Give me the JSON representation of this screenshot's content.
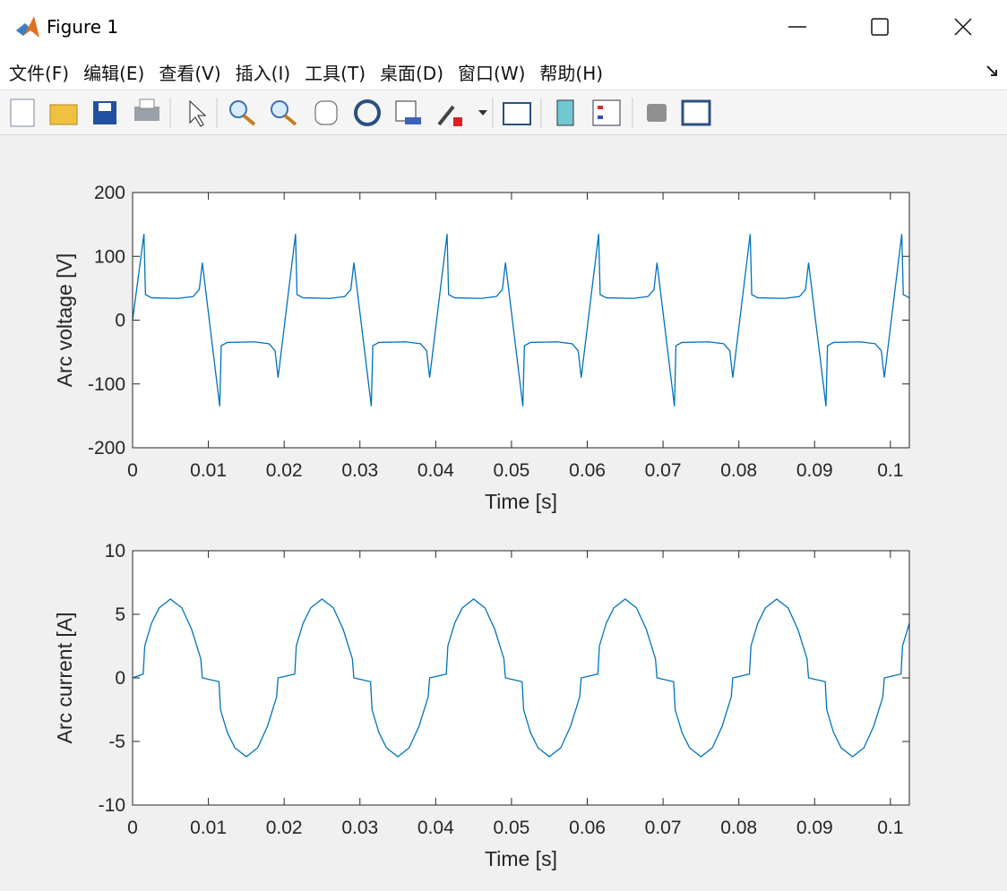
{
  "window": {
    "title": "Figure 1",
    "menu": [
      "文件(F)",
      "编辑(E)",
      "查看(V)",
      "插入(I)",
      "工具(T)",
      "桌面(D)",
      "窗口(W)",
      "帮助(H)"
    ]
  },
  "chart_data": [
    {
      "type": "line",
      "xlabel": "Time [s]",
      "ylabel": "Arc voltage [V]",
      "x": [
        0,
        0.0015,
        0.0017,
        0.0025,
        0.006,
        0.008,
        0.0088,
        0.0092,
        0.0115,
        0.0117,
        0.0125,
        0.016,
        0.018,
        0.0188,
        0.0192,
        0.0215,
        0.0217,
        0.0225,
        0.026,
        0.028,
        0.0288,
        0.0292,
        0.0315,
        0.0317,
        0.0325,
        0.036,
        0.038,
        0.0388,
        0.0392,
        0.0415,
        0.0417,
        0.0425,
        0.046,
        0.048,
        0.0488,
        0.0492,
        0.0515,
        0.0517,
        0.0525,
        0.056,
        0.058,
        0.0588,
        0.0592,
        0.0615,
        0.0617,
        0.0625,
        0.066,
        0.068,
        0.0688,
        0.0692,
        0.0715,
        0.0717,
        0.0725,
        0.076,
        0.078,
        0.0788,
        0.0792,
        0.0815,
        0.0817,
        0.0825,
        0.086,
        0.088,
        0.0888,
        0.0892,
        0.0915,
        0.0917,
        0.0925,
        0.096,
        0.098,
        0.0988,
        0.0992,
        0.1015,
        0.1017,
        0.1025
      ],
      "series": [
        {
          "color": "#0072bd",
          "values": [
            0,
            135,
            40,
            35,
            34,
            37,
            48,
            90,
            -135,
            -40,
            -35,
            -34,
            -37,
            -48,
            -90,
            135,
            40,
            35,
            34,
            37,
            48,
            90,
            -135,
            -40,
            -35,
            -34,
            -37,
            -48,
            -90,
            135,
            40,
            35,
            34,
            37,
            48,
            90,
            -135,
            -40,
            -35,
            -34,
            -37,
            -48,
            -90,
            135,
            40,
            35,
            34,
            37,
            48,
            90,
            -135,
            -40,
            -35,
            -34,
            -37,
            -48,
            -90,
            135,
            40,
            35,
            34,
            37,
            48,
            90,
            -135,
            -40,
            -35,
            -34,
            -37,
            -48,
            -90,
            135,
            40,
            35
          ]
        }
      ],
      "xlim": [
        0,
        0.1025
      ],
      "xticks": [
        0,
        0.01,
        0.02,
        0.03,
        0.04,
        0.05,
        0.06,
        0.07,
        0.08,
        0.09,
        0.1
      ],
      "ylim": [
        -200,
        200
      ],
      "yticks": [
        -200,
        -100,
        0,
        100,
        200
      ]
    },
    {
      "type": "line",
      "xlabel": "Time [s]",
      "ylabel": "Arc current [A]",
      "x": [
        0,
        0.0014,
        0.0016,
        0.0025,
        0.0035,
        0.005,
        0.0065,
        0.0078,
        0.009,
        0.0092,
        0.0114,
        0.0116,
        0.0125,
        0.0135,
        0.015,
        0.0165,
        0.0178,
        0.019,
        0.0192,
        0.0214,
        0.0216,
        0.0225,
        0.0235,
        0.025,
        0.0265,
        0.0278,
        0.029,
        0.0292,
        0.0314,
        0.0316,
        0.0325,
        0.0335,
        0.035,
        0.0365,
        0.0378,
        0.039,
        0.0392,
        0.0414,
        0.0416,
        0.0425,
        0.0435,
        0.045,
        0.0465,
        0.0478,
        0.049,
        0.0492,
        0.0514,
        0.0516,
        0.0525,
        0.0535,
        0.055,
        0.0565,
        0.0578,
        0.059,
        0.0592,
        0.0614,
        0.0616,
        0.0625,
        0.0635,
        0.065,
        0.0665,
        0.0678,
        0.069,
        0.0692,
        0.0714,
        0.0716,
        0.0725,
        0.0735,
        0.075,
        0.0765,
        0.0778,
        0.079,
        0.0792,
        0.0814,
        0.0816,
        0.0825,
        0.0835,
        0.085,
        0.0865,
        0.0878,
        0.089,
        0.0892,
        0.0914,
        0.0916,
        0.0925,
        0.0935,
        0.095,
        0.0965,
        0.0978,
        0.099,
        0.0992,
        0.1014,
        0.1016,
        0.1025
      ],
      "series": [
        {
          "color": "#0072bd",
          "values": [
            0,
            0.3,
            2.5,
            4.3,
            5.5,
            6.2,
            5.5,
            3.8,
            1.5,
            0,
            -0.3,
            -2.5,
            -4.3,
            -5.5,
            -6.2,
            -5.5,
            -3.8,
            -1.5,
            0,
            0.3,
            2.5,
            4.3,
            5.5,
            6.2,
            5.5,
            3.8,
            1.5,
            0,
            -0.3,
            -2.5,
            -4.3,
            -5.5,
            -6.2,
            -5.5,
            -3.8,
            -1.5,
            0,
            0.3,
            2.5,
            4.3,
            5.5,
            6.2,
            5.5,
            3.8,
            1.5,
            0,
            -0.3,
            -2.5,
            -4.3,
            -5.5,
            -6.2,
            -5.5,
            -3.8,
            -1.5,
            0,
            0.3,
            2.5,
            4.3,
            5.5,
            6.2,
            5.5,
            3.8,
            1.5,
            0,
            -0.3,
            -2.5,
            -4.3,
            -5.5,
            -6.2,
            -5.5,
            -3.8,
            -1.5,
            0,
            0.3,
            2.5,
            4.3,
            5.5,
            6.2,
            5.5,
            3.8,
            1.5,
            0,
            -0.3,
            -2.5,
            -4.3,
            -5.5,
            -6.2,
            -5.5,
            -3.8,
            -1.5,
            0,
            0.3,
            2.5,
            4.3
          ]
        }
      ],
      "xlim": [
        0,
        0.1025
      ],
      "xticks": [
        0,
        0.01,
        0.02,
        0.03,
        0.04,
        0.05,
        0.06,
        0.07,
        0.08,
        0.09,
        0.1
      ],
      "ylim": [
        -10,
        10
      ],
      "yticks": [
        -10,
        -5,
        0,
        5,
        10
      ]
    }
  ]
}
